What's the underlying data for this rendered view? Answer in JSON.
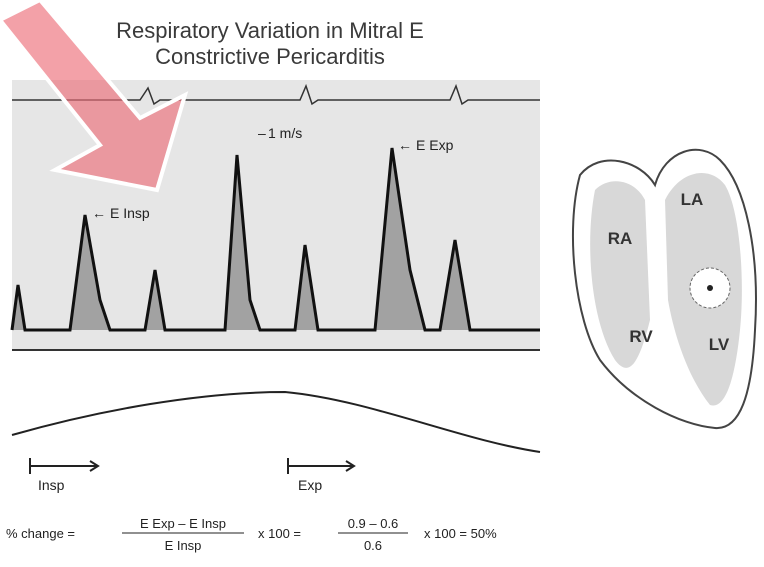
{
  "title": {
    "line1": "Respiratory Variation in Mitral E",
    "line2": "Constrictive Pericarditis"
  },
  "doppler": {
    "scale": "1 m/s",
    "e_exp": "E Exp",
    "e_insp": "E Insp"
  },
  "respiration": {
    "insp": "Insp",
    "exp": "Exp"
  },
  "formula": {
    "lead": "% change =",
    "num1": "E Exp – E Insp",
    "den1": "E Insp",
    "mult1": "x 100 =",
    "num2": "0.9 – 0.6",
    "den2": "0.6",
    "result": "x 100 = 50%"
  },
  "heart": {
    "la": "LA",
    "ra": "RA",
    "rv": "RV",
    "lv": "LV"
  }
}
